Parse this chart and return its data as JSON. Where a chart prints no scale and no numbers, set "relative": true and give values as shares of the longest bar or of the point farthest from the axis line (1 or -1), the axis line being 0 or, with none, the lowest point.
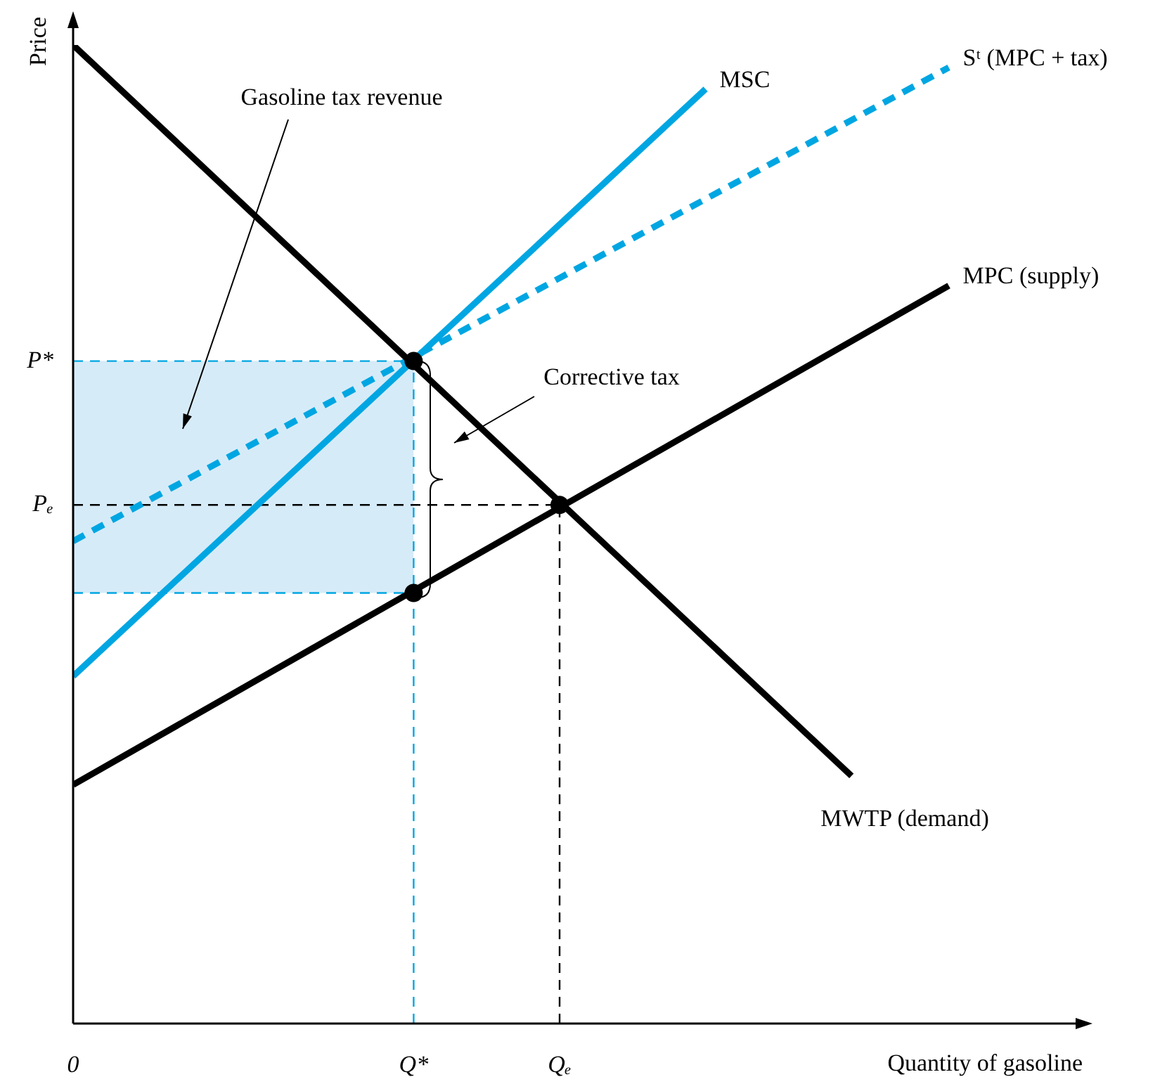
{
  "chart_data": {
    "type": "line",
    "relative": true,
    "xlabel": "Quantity of gasoline",
    "ylabel": "Price",
    "categories": [
      "0",
      null,
      null,
      null,
      null,
      null,
      null,
      "Q*",
      null,
      null,
      "Qₑ",
      null,
      null,
      null,
      null,
      null,
      null,
      null,
      null,
      null,
      null
    ],
    "legend": false,
    "marker": "none",
    "series": [
      {
        "name": "MWTP (demand)",
        "color": "#000000",
        "values": [
          1.0,
          null,
          null,
          null,
          null,
          null,
          null,
          null,
          null,
          null,
          null,
          null,
          null,
          null,
          null,
          null,
          0.253,
          null,
          null,
          null,
          null
        ]
      },
      {
        "name": "MPC (supply)",
        "color": "#000000",
        "values": [
          0.244,
          null,
          null,
          null,
          null,
          null,
          null,
          null,
          null,
          null,
          null,
          null,
          null,
          null,
          null,
          null,
          null,
          null,
          0.754,
          null,
          null
        ]
      },
      {
        "name": "MSC",
        "color": "#00a6e2",
        "values": [
          0.355,
          null,
          null,
          null,
          null,
          null,
          null,
          null,
          null,
          null,
          null,
          null,
          null,
          0.955,
          null,
          null,
          null,
          null,
          null,
          null,
          null
        ]
      },
      {
        "name": "Sᵗ (MPC + tax)",
        "color": "#00a6e2",
        "line_style": "dashed",
        "values": [
          0.493,
          null,
          null,
          null,
          null,
          null,
          null,
          null,
          null,
          null,
          null,
          null,
          null,
          null,
          null,
          null,
          null,
          null,
          0.977,
          null,
          null
        ]
      },
      {
        "name": "P*",
        "color": "#00a6e2",
        "line_style": "dashed",
        "values": [
          0.677,
          0.677,
          0.677,
          0.677,
          0.677,
          0.677,
          0.677,
          0.677,
          null,
          null,
          null,
          null,
          null,
          null,
          null,
          null,
          null,
          null,
          null,
          null,
          null
        ],
        "lower": [
          0.44,
          0.44,
          0.44,
          0.44,
          0.44,
          0.44,
          0.44,
          0.44,
          null,
          null,
          null,
          null,
          null,
          null,
          null,
          null,
          null,
          null,
          null,
          null,
          null
        ],
        "upper": [
          0.677,
          0.677,
          0.677,
          0.677,
          0.677,
          0.677,
          0.677,
          0.677,
          null,
          null,
          null,
          null,
          null,
          null,
          null,
          null,
          null,
          null,
          null,
          null,
          null
        ]
      },
      {
        "color": "#00a6e2",
        "line_style": "dashed",
        "values": [
          0.44,
          null,
          null,
          null,
          null,
          null,
          null,
          0.44,
          null,
          null,
          null,
          null,
          null,
          null,
          null,
          null,
          null,
          null,
          null,
          null,
          null
        ]
      },
      {
        "name": "Pₑ",
        "color": "#000000",
        "line_style": "dashed",
        "values": [
          0.53,
          null,
          null,
          null,
          null,
          null,
          null,
          null,
          null,
          null,
          0.53,
          null,
          null,
          null,
          null,
          null,
          null,
          null,
          null,
          null,
          null
        ]
      },
      {
        "color": "#00a6e2",
        "line_style": "dashed",
        "x": [
          "Q*",
          "Q*"
        ],
        "values": [
          0,
          0.677
        ]
      },
      {
        "color": "#000000",
        "line_style": "dashed",
        "x": [
          "Qₑ",
          "Qₑ"
        ],
        "values": [
          0,
          0.53
        ]
      },
      {
        "type": "scatter",
        "marker": "circle",
        "color": "#000000",
        "x": [
          "Q*",
          "Q*",
          "Qₑ"
        ],
        "values": [
          0.677,
          0.44,
          0.53
        ]
      }
    ],
    "annotations": [
      "Gasoline tax revenue",
      "Corrective tax"
    ]
  }
}
